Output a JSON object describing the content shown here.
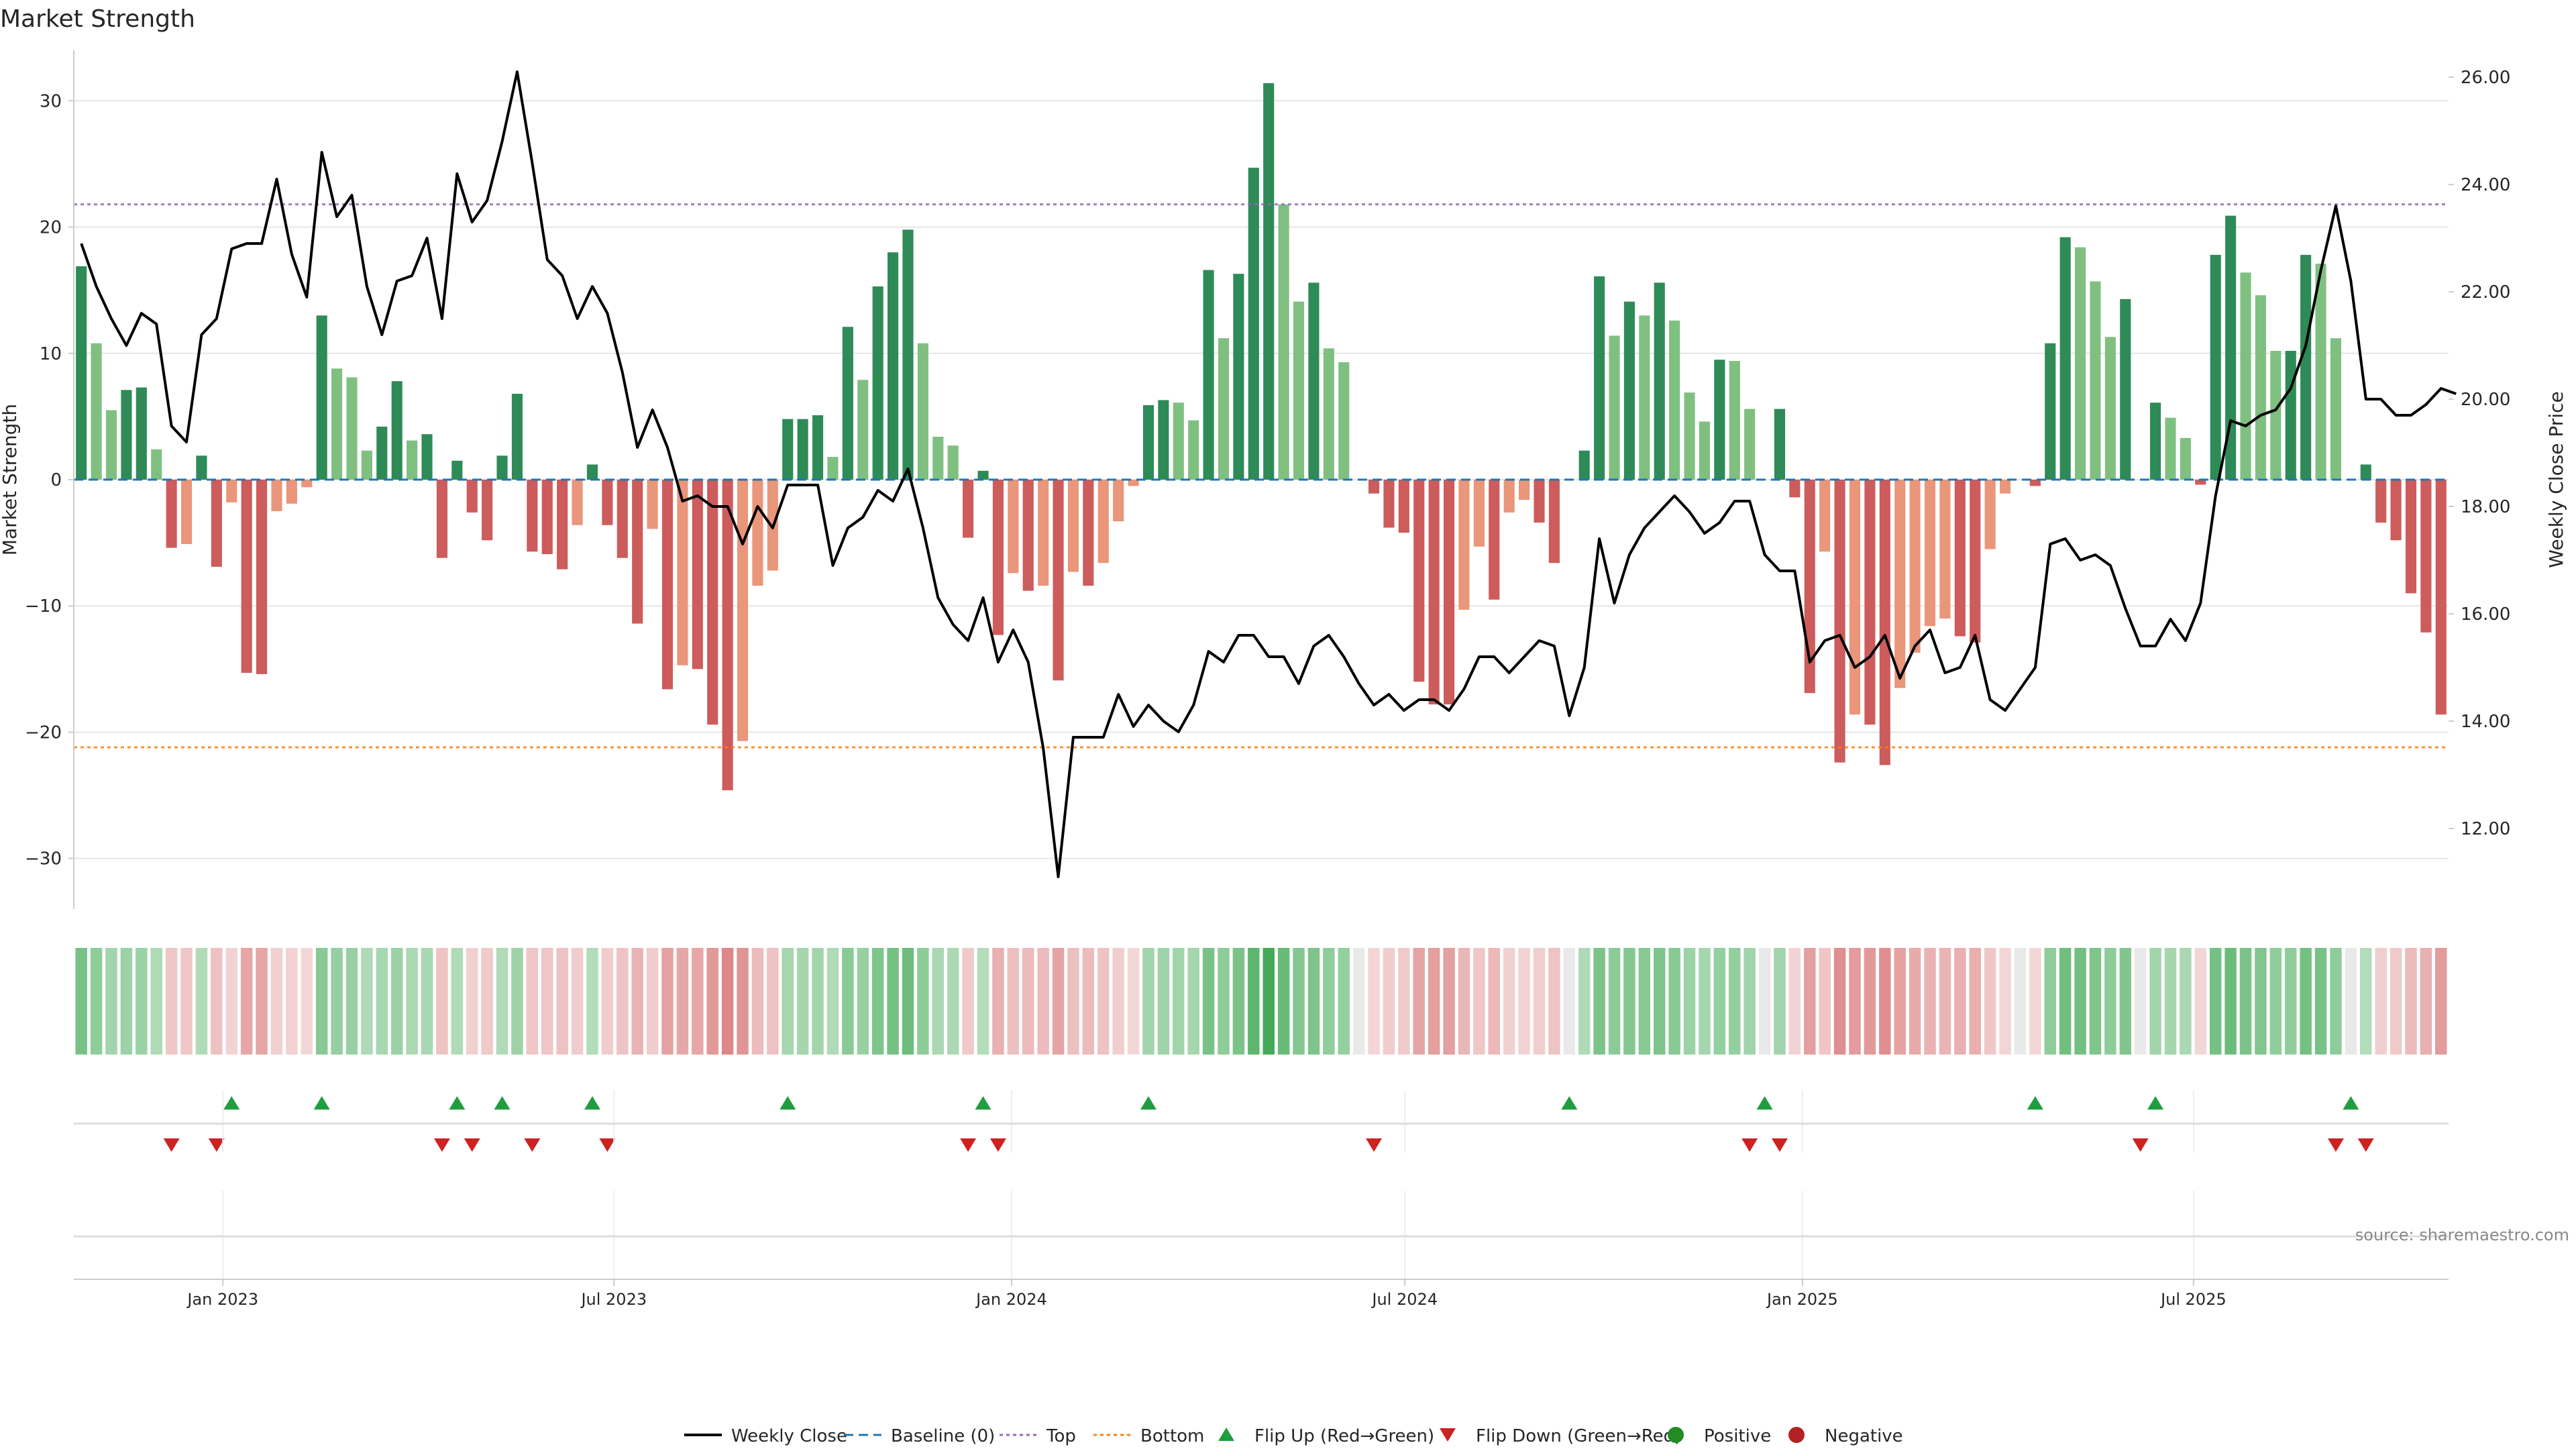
{
  "chart_data": {
    "type": "bar",
    "title": "Market Strength",
    "ylabel_left": "Market Strength",
    "ylabel_right": "Weekly Close Price",
    "ylim_left": [
      -34,
      34
    ],
    "ylim_right": [
      10.5,
      26.5
    ],
    "left_ticks": [
      30,
      20,
      10,
      0,
      -10,
      -20,
      -30
    ],
    "left_tick_labels": [
      "30",
      "20",
      "10",
      "0",
      "−10",
      "−20",
      "−30"
    ],
    "right_ticks": [
      26,
      24,
      22,
      20,
      18,
      16,
      14,
      12
    ],
    "right_tick_labels": [
      "26.00",
      "24.00",
      "22.00",
      "20.00",
      "18.00",
      "16.00",
      "14.00",
      "12.00"
    ],
    "top_level": 21.8,
    "bottom_level": -21.2,
    "time_range": [
      "2022-10-24",
      "2025-10-27"
    ],
    "time_tick_dates": [
      "2023-01-01",
      "2023-07-01",
      "2024-01-01",
      "2024-07-01",
      "2025-01-01",
      "2025-07-01"
    ],
    "time_tick_labels": [
      "Jan 2023",
      "Jul 2023",
      "Jan 2024",
      "Jul 2024",
      "Jan 2025",
      "Jul 2025"
    ],
    "start_date": "2022-10-24",
    "strength": [
      16.9,
      10.8,
      5.5,
      7.1,
      7.3,
      2.4,
      -5.4,
      -5.1,
      1.9,
      -6.9,
      -1.8,
      -15.3,
      -15.4,
      -2.5,
      -1.9,
      -0.6,
      13,
      8.8,
      8.1,
      2.3,
      4.2,
      7.8,
      3.1,
      3.6,
      -6.2,
      1.5,
      -2.6,
      -4.8,
      1.9,
      6.8,
      -5.7,
      -5.9,
      -7.1,
      -3.6,
      1.2,
      -3.6,
      -6.2,
      -11.4,
      -3.9,
      -16.6,
      -14.7,
      -15,
      -19.4,
      -24.6,
      -20.7,
      -8.4,
      -7.2,
      4.8,
      4.8,
      5.1,
      1.8,
      12.1,
      7.9,
      15.3,
      18,
      19.8,
      10.8,
      3.4,
      2.7,
      -4.6,
      0.7,
      -12.3,
      -7.4,
      -8.8,
      -8.4,
      -15.9,
      -7.3,
      -8.4,
      -6.6,
      -3.3,
      -0.5,
      5.9,
      6.3,
      6.1,
      4.7,
      16.6,
      11.2,
      16.3,
      24.7,
      31.4,
      21.8,
      14.1,
      15.6,
      10.4,
      9.3,
      0,
      -1.1,
      -3.8,
      -4.2,
      -16,
      -17.8,
      -17.8,
      -10.3,
      -5.3,
      -9.5,
      -2.6,
      -1.6,
      -3.4,
      -6.6,
      0,
      2.3,
      16.1,
      11.4,
      14.1,
      13,
      15.6,
      12.6,
      6.9,
      4.6,
      9.5,
      9.4,
      5.6,
      0,
      5.6,
      -1.4,
      -16.9,
      -5.7,
      -22.4,
      -18.6,
      -19.4,
      -22.6,
      -16.5,
      -13.7,
      -11.6,
      -11,
      -12.4,
      -12.9,
      -5.5,
      -1.1,
      0,
      -0.5,
      10.8,
      19.2,
      18.4,
      15.7,
      11.3,
      14.3,
      0,
      6.1,
      4.9,
      3.3,
      -0.4,
      17.8,
      20.9,
      16.4,
      14.6,
      10.2,
      10.2,
      17.8,
      17.1,
      11.2,
      0,
      1.2,
      -3.4,
      -4.8,
      -9,
      -12.1,
      -18.6
    ],
    "close_prices": [
      22.9,
      22.1,
      21.5,
      21,
      21.6,
      21.4,
      19.5,
      19.2,
      21.2,
      21.5,
      22.8,
      22.9,
      22.9,
      24.1,
      22.7,
      21.9,
      24.6,
      23.4,
      23.8,
      22.1,
      21.2,
      22.2,
      22.3,
      23,
      21.5,
      24.2,
      23.3,
      23.7,
      24.8,
      26.1,
      24.4,
      22.6,
      22.3,
      21.5,
      22.1,
      21.6,
      20.5,
      19.1,
      19.8,
      19.1,
      18.1,
      18.2,
      18,
      18,
      17.3,
      18,
      17.6,
      18.4,
      18.4,
      18.4,
      16.9,
      17.6,
      17.8,
      18.3,
      18.1,
      18.7,
      17.6,
      16.3,
      15.8,
      15.5,
      16.3,
      15.1,
      15.7,
      15.1,
      13.5,
      11.1,
      13.7,
      13.7,
      13.7,
      14.5,
      13.9,
      14.3,
      14,
      13.8,
      14.3,
      15.3,
      15.1,
      15.6,
      15.6,
      15.2,
      15.2,
      14.7,
      15.4,
      15.6,
      15.2,
      14.7,
      14.3,
      14.5,
      14.2,
      14.4,
      14.4,
      14.2,
      14.6,
      15.2,
      15.2,
      14.9,
      15.2,
      15.5,
      15.4,
      14.1,
      15,
      17.4,
      16.2,
      17.1,
      17.6,
      17.9,
      18.2,
      17.9,
      17.5,
      17.7,
      18.1,
      18.1,
      17.1,
      16.8,
      16.8,
      15.1,
      15.5,
      15.6,
      15,
      15.2,
      15.6,
      14.8,
      15.4,
      15.7,
      14.9,
      15,
      15.6,
      14.4,
      14.2,
      14.6,
      15,
      17.3,
      17.4,
      17,
      17.1,
      16.9,
      16.1,
      15.4,
      15.4,
      15.9,
      15.5,
      16.2,
      18.2,
      19.6,
      19.5,
      19.7,
      19.8,
      20.2,
      21,
      22.4,
      23.6,
      22.2,
      20,
      20,
      19.7,
      19.7,
      19.9,
      20.2,
      20.1
    ],
    "flip_up": [
      10,
      16,
      25,
      28,
      34,
      47,
      60,
      71,
      99,
      112,
      130,
      138,
      151
    ],
    "flip_down": [
      6,
      9,
      24,
      26,
      30,
      35,
      59,
      61,
      86,
      111,
      113,
      137,
      150,
      152
    ],
    "colors": {
      "pos_dark": "#2e8b57",
      "pos_light": "#7fc081",
      "neg_dark": "#cd5c5c",
      "neg_light": "#e9967a",
      "close_line": "#000000",
      "baseline": "#1f77b4",
      "top": "#9467bd",
      "bottom": "#ff7f0e",
      "flip_up": "#1f9e3f",
      "flip_down": "#cc2222",
      "positive_dot": "#228b22",
      "negative_dot": "#b22222",
      "grid": "#e6e6e6",
      "axis": "#cccccc",
      "text": "#262626",
      "source": "#888888"
    },
    "legend": [
      {
        "label": "Weekly Close",
        "kind": "line-solid",
        "color": "#000000"
      },
      {
        "label": "Baseline (0)",
        "kind": "line-dash",
        "color": "#1f77b4"
      },
      {
        "label": "Top",
        "kind": "line-dot",
        "color": "#9467bd"
      },
      {
        "label": "Bottom",
        "kind": "line-dot",
        "color": "#ff7f0e"
      },
      {
        "label": "Flip Up (Red→Green)",
        "kind": "tri-up",
        "color": "#1f9e3f"
      },
      {
        "label": "Flip Down (Green→Red)",
        "kind": "tri-down",
        "color": "#cc2222"
      },
      {
        "label": "Positive",
        "kind": "dot",
        "color": "#228b22"
      },
      {
        "label": "Negative",
        "kind": "dot",
        "color": "#b22222"
      }
    ],
    "legend_position": "bottom-center",
    "source_note": "source: sharemaestro.com"
  }
}
